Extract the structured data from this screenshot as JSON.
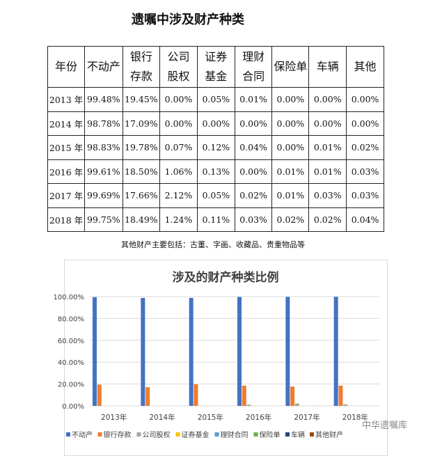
{
  "title": "遗嘱中涉及财产种类",
  "table": {
    "headers": [
      "年份",
      "不动产",
      "银行存款",
      "公司股权",
      "证券基金",
      "理财合同",
      "保险单",
      "车辆",
      "其他"
    ],
    "header_lines": [
      [
        "年份"
      ],
      [
        "不动产"
      ],
      [
        "银行",
        "存款"
      ],
      [
        "公司",
        "股权"
      ],
      [
        "证券",
        "基金"
      ],
      [
        "理财",
        "合同"
      ],
      [
        "保险单"
      ],
      [
        "车辆"
      ],
      [
        "其他"
      ]
    ],
    "rows": [
      [
        "2013 年",
        "99.48%",
        "19.45%",
        "0.00%",
        "0.05%",
        "0.01%",
        "0.00%",
        "0.00%",
        "0.00%"
      ],
      [
        "2014 年",
        "98.78%",
        "17.09%",
        "0.00%",
        "0.00%",
        "0.00%",
        "0.00%",
        "0.00%",
        "0.00%"
      ],
      [
        "2015 年",
        "98.83%",
        "19.78%",
        "0.07%",
        "0.12%",
        "0.04%",
        "0.00%",
        "0.01%",
        "0.02%"
      ],
      [
        "2016 年",
        "99.61%",
        "18.50%",
        "1.06%",
        "0.13%",
        "0.00%",
        "0.01%",
        "0.01%",
        "0.03%"
      ],
      [
        "2017 年",
        "99.69%",
        "17.66%",
        "2.12%",
        "0.05%",
        "0.02%",
        "0.01%",
        "0.03%",
        "0.03%"
      ],
      [
        "2018 年",
        "99.75%",
        "18.49%",
        "1.24%",
        "0.11%",
        "0.03%",
        "0.02%",
        "0.02%",
        "0.04%"
      ]
    ]
  },
  "note": "其他财产主要包括：古董、字画、收藏品、贵重物品等",
  "watermark": "中华遗嘱库",
  "chart_data": {
    "type": "bar",
    "title": "涉及的财产种类比例",
    "categories": [
      "2013年",
      "2014年",
      "2015年",
      "2016年",
      "2017年",
      "2018年"
    ],
    "ylim": [
      0,
      100
    ],
    "yticks": [
      "0.00%",
      "20.00%",
      "40.00%",
      "60.00%",
      "80.00%",
      "100.00%"
    ],
    "grid": true,
    "legend_position": "bottom",
    "series": [
      {
        "name": "不动产",
        "color": "#4472c4",
        "values": [
          99.48,
          98.78,
          98.83,
          99.61,
          99.69,
          99.75
        ]
      },
      {
        "name": "银行存款",
        "color": "#ed7d31",
        "values": [
          19.45,
          17.09,
          19.78,
          18.5,
          17.66,
          18.49
        ]
      },
      {
        "name": "公司股权",
        "color": "#a5a5a5",
        "values": [
          0.0,
          0.0,
          0.07,
          1.06,
          2.12,
          1.24
        ]
      },
      {
        "name": "证券基金",
        "color": "#ffc000",
        "values": [
          0.05,
          0.0,
          0.12,
          0.13,
          0.05,
          0.11
        ]
      },
      {
        "name": "理财合同",
        "color": "#5b9bd5",
        "values": [
          0.01,
          0.0,
          0.04,
          0.0,
          0.02,
          0.03
        ]
      },
      {
        "name": "保险单",
        "color": "#70ad47",
        "values": [
          0.0,
          0.0,
          0.0,
          0.01,
          0.01,
          0.02
        ]
      },
      {
        "name": "车辆",
        "color": "#264478",
        "values": [
          0.0,
          0.0,
          0.01,
          0.01,
          0.03,
          0.02
        ]
      },
      {
        "name": "其他财产",
        "color": "#9e480e",
        "values": [
          0.0,
          0.0,
          0.02,
          0.03,
          0.03,
          0.04
        ]
      }
    ]
  }
}
